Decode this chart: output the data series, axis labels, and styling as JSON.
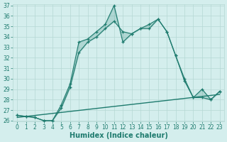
{
  "xlabel": "Humidex (Indice chaleur)",
  "x_values": [
    0,
    1,
    2,
    3,
    4,
    5,
    6,
    7,
    8,
    9,
    10,
    11,
    12,
    13,
    14,
    15,
    16,
    17,
    18,
    19,
    20,
    21,
    22,
    23
  ],
  "line_jagged": [
    26.5,
    26.4,
    26.3,
    26.0,
    26.0,
    27.5,
    29.5,
    33.5,
    33.8,
    34.5,
    35.2,
    37.0,
    33.5,
    34.3,
    34.8,
    34.8,
    35.7,
    34.5,
    32.2,
    30.0,
    28.2,
    29.0,
    28.0,
    28.8
  ],
  "line_smooth": [
    26.5,
    26.4,
    26.3,
    26.0,
    26.0,
    27.2,
    29.2,
    32.5,
    33.5,
    34.0,
    34.8,
    35.5,
    34.5,
    34.3,
    34.8,
    35.2,
    35.7,
    34.5,
    32.2,
    29.8,
    28.2,
    28.2,
    28.0,
    28.8
  ],
  "line_trend_x": [
    0,
    23
  ],
  "line_trend_y": [
    26.3,
    28.5
  ],
  "line_color": "#1e7b6e",
  "bg_color": "#d4eeed",
  "grid_color": "#b5d8d4",
  "ylim_min": 26,
  "ylim_max": 37,
  "yticks": [
    26,
    27,
    28,
    29,
    30,
    31,
    32,
    33,
    34,
    35,
    36,
    37
  ],
  "xticks": [
    0,
    1,
    2,
    3,
    4,
    5,
    6,
    7,
    8,
    9,
    10,
    11,
    12,
    13,
    14,
    15,
    16,
    17,
    18,
    19,
    20,
    21,
    22,
    23
  ],
  "tick_fontsize": 5.5,
  "xlabel_fontsize": 7.0
}
